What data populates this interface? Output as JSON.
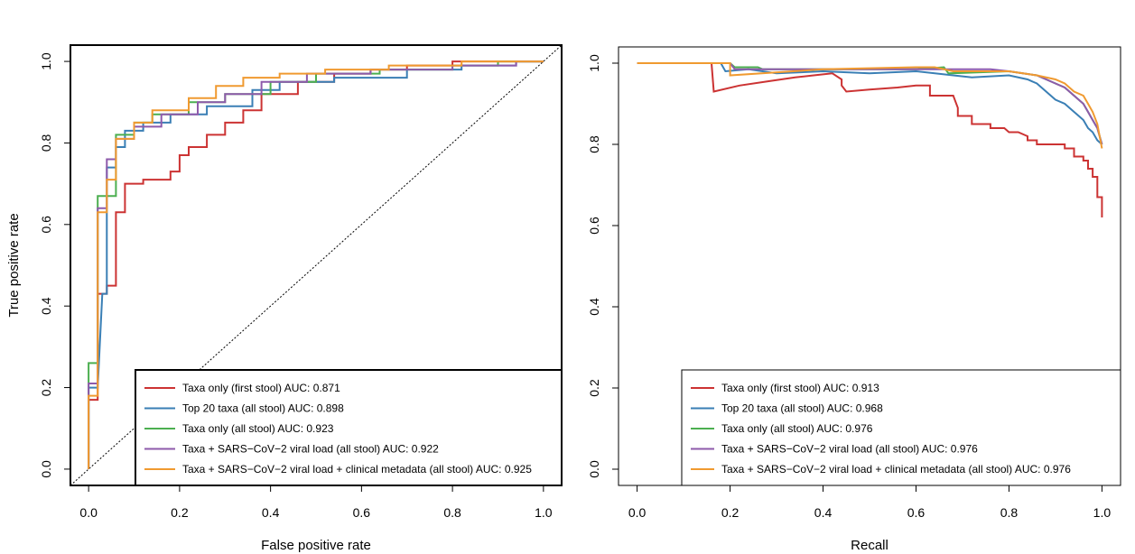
{
  "chart_data": [
    {
      "type": "line",
      "title": "",
      "xlabel": "False positive rate",
      "ylabel": "True positive rate",
      "xlim": [
        -0.04,
        1.04
      ],
      "ylim": [
        -0.04,
        1.04
      ],
      "xticks": [
        "0.0",
        "0.2",
        "0.4",
        "0.6",
        "0.8",
        "1.0"
      ],
      "yticks": [
        "0.0",
        "0.2",
        "0.4",
        "0.6",
        "0.8",
        "1.0"
      ],
      "grid": false,
      "legend_position": "bottom-right",
      "diagonal_reference": true,
      "series": [
        {
          "name": "Taxa only (first stool) AUC: 0.871",
          "color": "#cc3333",
          "x": [
            0.0,
            0.0,
            0.02,
            0.02,
            0.04,
            0.04,
            0.06,
            0.06,
            0.08,
            0.08,
            0.12,
            0.12,
            0.18,
            0.18,
            0.2,
            0.2,
            0.22,
            0.22,
            0.26,
            0.26,
            0.3,
            0.3,
            0.34,
            0.34,
            0.38,
            0.38,
            0.46,
            0.46,
            0.54,
            0.54,
            0.62,
            0.62,
            0.7,
            0.7,
            0.8,
            0.8,
            0.9,
            0.9,
            1.0
          ],
          "y": [
            0.0,
            0.17,
            0.17,
            0.43,
            0.43,
            0.45,
            0.45,
            0.63,
            0.63,
            0.7,
            0.7,
            0.71,
            0.71,
            0.73,
            0.73,
            0.77,
            0.77,
            0.79,
            0.79,
            0.82,
            0.82,
            0.85,
            0.85,
            0.88,
            0.88,
            0.92,
            0.92,
            0.95,
            0.95,
            0.97,
            0.97,
            0.98,
            0.98,
            0.99,
            0.99,
            1.0,
            1.0,
            1.0,
            1.0
          ]
        },
        {
          "name": "Top 20 taxa (all stool) AUC: 0.898",
          "color": "#3a7fb5",
          "x": [
            0.0,
            0.0,
            0.02,
            0.03,
            0.04,
            0.04,
            0.06,
            0.06,
            0.08,
            0.08,
            0.12,
            0.12,
            0.18,
            0.18,
            0.26,
            0.26,
            0.36,
            0.36,
            0.42,
            0.42,
            0.54,
            0.54,
            0.7,
            0.7,
            0.82,
            0.82,
            0.94,
            0.94,
            1.0
          ],
          "y": [
            0.0,
            0.2,
            0.2,
            0.43,
            0.43,
            0.74,
            0.74,
            0.79,
            0.79,
            0.83,
            0.83,
            0.85,
            0.85,
            0.87,
            0.87,
            0.89,
            0.89,
            0.93,
            0.93,
            0.95,
            0.95,
            0.96,
            0.96,
            0.98,
            0.98,
            0.99,
            0.99,
            1.0,
            1.0
          ]
        },
        {
          "name": "Taxa only (all stool) AUC: 0.923",
          "color": "#4caf50",
          "x": [
            0.0,
            0.0,
            0.02,
            0.02,
            0.06,
            0.06,
            0.1,
            0.1,
            0.14,
            0.14,
            0.22,
            0.22,
            0.3,
            0.3,
            0.4,
            0.4,
            0.5,
            0.5,
            0.64,
            0.64,
            0.8,
            0.8,
            0.9,
            0.9,
            1.0
          ],
          "y": [
            0.0,
            0.26,
            0.26,
            0.67,
            0.67,
            0.82,
            0.82,
            0.85,
            0.85,
            0.87,
            0.87,
            0.9,
            0.9,
            0.92,
            0.92,
            0.95,
            0.95,
            0.97,
            0.97,
            0.98,
            0.98,
            0.99,
            0.99,
            1.0,
            1.0
          ]
        },
        {
          "name": "Taxa + SARS−CoV−2 viral load (all stool) AUC: 0.922",
          "color": "#8e5aab",
          "x": [
            0.0,
            0.0,
            0.02,
            0.02,
            0.04,
            0.04,
            0.06,
            0.06,
            0.1,
            0.1,
            0.16,
            0.16,
            0.24,
            0.24,
            0.3,
            0.3,
            0.38,
            0.38,
            0.48,
            0.48,
            0.62,
            0.62,
            0.8,
            0.8,
            0.94,
            0.94,
            1.0
          ],
          "y": [
            0.0,
            0.21,
            0.21,
            0.64,
            0.64,
            0.76,
            0.76,
            0.81,
            0.81,
            0.84,
            0.84,
            0.87,
            0.87,
            0.9,
            0.9,
            0.92,
            0.92,
            0.95,
            0.95,
            0.97,
            0.97,
            0.98,
            0.98,
            0.99,
            0.99,
            1.0,
            1.0
          ]
        },
        {
          "name": "Taxa + SARS−CoV−2 viral load + clinical metadata (all stool) AUC: 0.925",
          "color": "#f09a30",
          "x": [
            0.0,
            0.0,
            0.02,
            0.02,
            0.04,
            0.04,
            0.06,
            0.06,
            0.1,
            0.1,
            0.14,
            0.14,
            0.22,
            0.22,
            0.28,
            0.28,
            0.34,
            0.34,
            0.42,
            0.42,
            0.52,
            0.52,
            0.66,
            0.66,
            0.82,
            0.82,
            0.92,
            0.92,
            1.0
          ],
          "y": [
            0.0,
            0.18,
            0.18,
            0.63,
            0.63,
            0.71,
            0.71,
            0.81,
            0.81,
            0.85,
            0.85,
            0.88,
            0.88,
            0.91,
            0.91,
            0.94,
            0.94,
            0.96,
            0.96,
            0.97,
            0.97,
            0.98,
            0.98,
            0.99,
            0.99,
            1.0,
            1.0,
            1.0,
            1.0
          ]
        }
      ]
    },
    {
      "type": "line",
      "title": "",
      "xlabel": "Recall",
      "ylabel": "",
      "xlim": [
        -0.04,
        1.04
      ],
      "ylim": [
        -0.04,
        1.04
      ],
      "xticks": [
        "0.0",
        "0.2",
        "0.4",
        "0.6",
        "0.8",
        "1.0"
      ],
      "yticks": [
        "0.0",
        "0.2",
        "0.4",
        "0.6",
        "0.8",
        "1.0"
      ],
      "grid": false,
      "legend_position": "bottom-right",
      "diagonal_reference": false,
      "series": [
        {
          "name": "Taxa only (first stool) AUC: 0.913",
          "color": "#cc3333",
          "x": [
            0.0,
            0.16,
            0.165,
            0.22,
            0.28,
            0.34,
            0.38,
            0.42,
            0.44,
            0.44,
            0.45,
            0.5,
            0.56,
            0.6,
            0.63,
            0.63,
            0.68,
            0.69,
            0.69,
            0.72,
            0.72,
            0.76,
            0.76,
            0.79,
            0.8,
            0.82,
            0.84,
            0.84,
            0.86,
            0.86,
            0.9,
            0.9,
            0.92,
            0.92,
            0.94,
            0.94,
            0.96,
            0.96,
            0.97,
            0.97,
            0.98,
            0.98,
            0.99,
            0.99,
            1.0,
            1.0
          ],
          "y": [
            1.0,
            1.0,
            0.93,
            0.945,
            0.955,
            0.965,
            0.97,
            0.975,
            0.96,
            0.945,
            0.93,
            0.935,
            0.94,
            0.945,
            0.945,
            0.92,
            0.92,
            0.89,
            0.87,
            0.87,
            0.85,
            0.85,
            0.84,
            0.84,
            0.83,
            0.83,
            0.82,
            0.81,
            0.81,
            0.8,
            0.8,
            0.8,
            0.8,
            0.79,
            0.79,
            0.77,
            0.77,
            0.76,
            0.76,
            0.74,
            0.74,
            0.72,
            0.72,
            0.67,
            0.67,
            0.62
          ]
        },
        {
          "name": "Top 20 taxa (all stool) AUC: 0.968",
          "color": "#3a7fb5",
          "x": [
            0.0,
            0.18,
            0.19,
            0.24,
            0.3,
            0.4,
            0.5,
            0.6,
            0.68,
            0.72,
            0.8,
            0.84,
            0.86,
            0.88,
            0.9,
            0.92,
            0.94,
            0.95,
            0.96,
            0.97,
            0.98,
            0.99,
            1.0
          ],
          "y": [
            1.0,
            1.0,
            0.98,
            0.985,
            0.975,
            0.98,
            0.975,
            0.98,
            0.97,
            0.965,
            0.97,
            0.96,
            0.95,
            0.93,
            0.91,
            0.9,
            0.88,
            0.87,
            0.86,
            0.84,
            0.83,
            0.81,
            0.8
          ]
        },
        {
          "name": "Taxa only (all stool) AUC: 0.976",
          "color": "#4caf50",
          "x": [
            0.0,
            0.2,
            0.21,
            0.26,
            0.27,
            0.4,
            0.6,
            0.66,
            0.67,
            0.8,
            0.86,
            0.9,
            0.92,
            0.94,
            0.96,
            0.97,
            0.98,
            0.99,
            1.0
          ],
          "y": [
            1.0,
            1.0,
            0.99,
            0.99,
            0.985,
            0.985,
            0.985,
            0.99,
            0.975,
            0.98,
            0.97,
            0.95,
            0.94,
            0.92,
            0.9,
            0.88,
            0.86,
            0.84,
            0.8
          ]
        },
        {
          "name": "Taxa + SARS−CoV−2 viral load (all stool) AUC: 0.976",
          "color": "#8e5aab",
          "x": [
            0.0,
            0.2,
            0.21,
            0.4,
            0.6,
            0.76,
            0.8,
            0.86,
            0.9,
            0.92,
            0.94,
            0.96,
            0.97,
            0.98,
            0.99,
            1.0
          ],
          "y": [
            1.0,
            1.0,
            0.985,
            0.985,
            0.985,
            0.985,
            0.98,
            0.97,
            0.95,
            0.94,
            0.92,
            0.9,
            0.88,
            0.86,
            0.84,
            0.8
          ]
        },
        {
          "name": "Taxa + SARS−CoV−2 viral load + clinical metadata (all stool) AUC: 0.976",
          "color": "#f09a30",
          "x": [
            0.0,
            0.2,
            0.2,
            0.4,
            0.6,
            0.64,
            0.68,
            0.8,
            0.86,
            0.9,
            0.92,
            0.94,
            0.96,
            0.97,
            0.98,
            0.99,
            1.0
          ],
          "y": [
            1.0,
            1.0,
            0.97,
            0.985,
            0.99,
            0.99,
            0.98,
            0.98,
            0.97,
            0.96,
            0.95,
            0.93,
            0.92,
            0.9,
            0.88,
            0.85,
            0.79
          ]
        }
      ]
    }
  ]
}
